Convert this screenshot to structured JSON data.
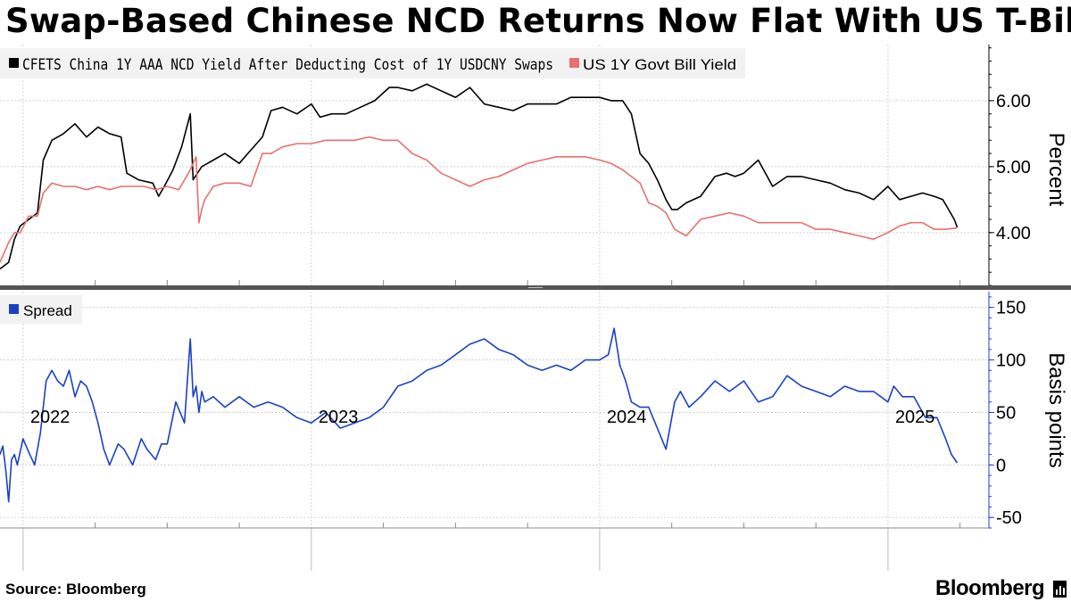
{
  "title": "Swap-Based Chinese NCD Returns Now Flat With US T-Bills",
  "source": "Source: Bloomberg",
  "brand": "Bloomberg",
  "brand_icon": "bar-chart-icon",
  "chart_data": [
    {
      "type": "line",
      "ylabel": "Percent",
      "ylim": [
        3.2,
        6.85
      ],
      "yticks": [
        4.0,
        5.0,
        6.0
      ],
      "ytick_labels": [
        "4.00",
        "5.00",
        "6.00"
      ],
      "x_tick_labels": [
        "2022",
        "2023",
        "2024",
        "2025"
      ],
      "x_ticks": [
        2022.0,
        2023.0,
        2024.0,
        2025.0
      ],
      "xlim": [
        2021.92,
        2025.35
      ],
      "grid": true,
      "legend_position": "top-left",
      "series": [
        {
          "name": "CFETS China 1Y AAA NCD Yield After Deducting Cost of 1Y USDCNY Swaps",
          "color": "#000000",
          "x": [
            2021.92,
            2021.95,
            2021.97,
            2021.99,
            2022.02,
            2022.05,
            2022.07,
            2022.1,
            2022.14,
            2022.18,
            2022.22,
            2022.26,
            2022.3,
            2022.34,
            2022.36,
            2022.4,
            2022.45,
            2022.47,
            2022.49,
            2022.52,
            2022.55,
            2022.58,
            2022.59,
            2022.62,
            2022.66,
            2022.7,
            2022.75,
            2022.79,
            2022.83,
            2022.86,
            2022.9,
            2022.95,
            2023.0,
            2023.03,
            2023.07,
            2023.12,
            2023.17,
            2023.22,
            2023.27,
            2023.3,
            2023.35,
            2023.4,
            2023.45,
            2023.5,
            2023.55,
            2023.6,
            2023.65,
            2023.7,
            2023.75,
            2023.8,
            2023.85,
            2023.9,
            2023.95,
            2024.0,
            2024.04,
            2024.08,
            2024.11,
            2024.14,
            2024.17,
            2024.2,
            2024.23,
            2024.25,
            2024.27,
            2024.3,
            2024.35,
            2024.4,
            2024.44,
            2024.47,
            2024.5,
            2024.55,
            2024.6,
            2024.65,
            2024.7,
            2024.75,
            2024.8,
            2024.85,
            2024.9,
            2024.95,
            2025.0,
            2025.04,
            2025.08,
            2025.12,
            2025.16,
            2025.19,
            2025.21,
            2025.23,
            2025.24
          ],
          "y": [
            3.45,
            3.55,
            3.9,
            4.1,
            4.2,
            4.3,
            5.1,
            5.4,
            5.5,
            5.65,
            5.45,
            5.6,
            5.5,
            5.45,
            4.9,
            4.8,
            4.75,
            4.55,
            4.7,
            4.95,
            5.3,
            5.8,
            4.8,
            5.0,
            5.1,
            5.2,
            5.05,
            5.25,
            5.45,
            5.85,
            5.9,
            5.8,
            5.95,
            5.75,
            5.8,
            5.8,
            5.9,
            6.0,
            6.2,
            6.2,
            6.15,
            6.25,
            6.15,
            6.05,
            6.2,
            5.95,
            5.9,
            5.85,
            5.95,
            5.95,
            5.95,
            6.05,
            6.05,
            6.05,
            6.0,
            6.0,
            5.8,
            5.2,
            5.05,
            4.8,
            4.5,
            4.35,
            4.35,
            4.45,
            4.55,
            4.85,
            4.9,
            4.85,
            4.9,
            5.1,
            4.7,
            4.85,
            4.85,
            4.8,
            4.75,
            4.65,
            4.6,
            4.5,
            4.7,
            4.5,
            4.55,
            4.6,
            4.55,
            4.5,
            4.35,
            4.2,
            4.08
          ]
        },
        {
          "name": "US 1Y Govt Bill Yield",
          "color": "#e8706d",
          "x": [
            2021.92,
            2021.95,
            2021.97,
            2021.99,
            2022.02,
            2022.05,
            2022.07,
            2022.1,
            2022.14,
            2022.18,
            2022.22,
            2022.26,
            2022.3,
            2022.34,
            2022.38,
            2022.42,
            2022.46,
            2022.5,
            2022.54,
            2022.58,
            2022.6,
            2022.61,
            2022.62,
            2022.63,
            2022.66,
            2022.7,
            2022.75,
            2022.79,
            2022.83,
            2022.86,
            2022.9,
            2022.95,
            2023.0,
            2023.05,
            2023.1,
            2023.15,
            2023.2,
            2023.25,
            2023.3,
            2023.35,
            2023.4,
            2023.45,
            2023.5,
            2023.55,
            2023.6,
            2023.65,
            2023.7,
            2023.75,
            2023.8,
            2023.85,
            2023.9,
            2023.95,
            2024.0,
            2024.04,
            2024.08,
            2024.11,
            2024.14,
            2024.17,
            2024.2,
            2024.23,
            2024.26,
            2024.3,
            2024.35,
            2024.4,
            2024.45,
            2024.5,
            2024.55,
            2024.6,
            2024.65,
            2024.7,
            2024.75,
            2024.8,
            2024.85,
            2024.9,
            2024.95,
            2025.0,
            2025.04,
            2025.08,
            2025.12,
            2025.16,
            2025.2,
            2025.24
          ],
          "y": [
            3.55,
            3.85,
            4.0,
            4.0,
            4.25,
            4.25,
            4.6,
            4.75,
            4.7,
            4.7,
            4.65,
            4.7,
            4.65,
            4.7,
            4.7,
            4.7,
            4.65,
            4.7,
            4.65,
            4.95,
            5.15,
            4.15,
            4.35,
            4.5,
            4.7,
            4.75,
            4.75,
            4.7,
            5.2,
            5.2,
            5.3,
            5.35,
            5.35,
            5.4,
            5.4,
            5.4,
            5.45,
            5.4,
            5.4,
            5.2,
            5.1,
            4.9,
            4.8,
            4.7,
            4.8,
            4.85,
            4.95,
            5.05,
            5.1,
            5.15,
            5.15,
            5.15,
            5.1,
            5.05,
            4.95,
            4.85,
            4.75,
            4.45,
            4.4,
            4.3,
            4.05,
            3.95,
            4.2,
            4.25,
            4.3,
            4.25,
            4.15,
            4.15,
            4.15,
            4.15,
            4.05,
            4.05,
            4.0,
            3.95,
            3.9,
            4.0,
            4.1,
            4.15,
            4.15,
            4.05,
            4.05,
            4.07
          ]
        }
      ]
    },
    {
      "type": "line",
      "ylabel": "Basis points",
      "ylim": [
        -60,
        165
      ],
      "yticks": [
        -50,
        0,
        50,
        100,
        150
      ],
      "ytick_labels": [
        "-50",
        "0",
        "50",
        "100",
        "150"
      ],
      "x_tick_labels": [
        "2022",
        "2023",
        "2024",
        "2025"
      ],
      "x_ticks": [
        2022.0,
        2023.0,
        2024.0,
        2025.0
      ],
      "xlim": [
        2021.92,
        2025.35
      ],
      "grid": true,
      "legend_position": "top-left",
      "series": [
        {
          "name": "Spread",
          "color": "#1b42c2",
          "x": [
            2021.92,
            2021.93,
            2021.94,
            2021.95,
            2021.96,
            2021.97,
            2021.98,
            2022.0,
            2022.02,
            2022.04,
            2022.06,
            2022.08,
            2022.1,
            2022.12,
            2022.14,
            2022.16,
            2022.18,
            2022.2,
            2022.22,
            2022.24,
            2022.26,
            2022.28,
            2022.3,
            2022.33,
            2022.35,
            2022.38,
            2022.41,
            2022.43,
            2022.46,
            2022.48,
            2022.5,
            2022.53,
            2022.56,
            2022.58,
            2022.59,
            2022.6,
            2022.61,
            2022.62,
            2022.63,
            2022.66,
            2022.7,
            2022.75,
            2022.8,
            2022.85,
            2022.9,
            2022.95,
            2023.0,
            2023.05,
            2023.1,
            2023.15,
            2023.2,
            2023.25,
            2023.3,
            2023.35,
            2023.4,
            2023.45,
            2023.5,
            2023.55,
            2023.6,
            2023.65,
            2023.7,
            2023.75,
            2023.8,
            2023.85,
            2023.9,
            2023.95,
            2024.0,
            2024.03,
            2024.05,
            2024.07,
            2024.09,
            2024.11,
            2024.14,
            2024.17,
            2024.2,
            2024.23,
            2024.26,
            2024.28,
            2024.31,
            2024.35,
            2024.4,
            2024.45,
            2024.5,
            2024.55,
            2024.6,
            2024.65,
            2024.7,
            2024.75,
            2024.8,
            2024.85,
            2024.9,
            2024.95,
            2025.0,
            2025.02,
            2025.05,
            2025.09,
            2025.13,
            2025.17,
            2025.2,
            2025.22,
            2025.24
          ],
          "y": [
            10,
            18,
            -5,
            -35,
            5,
            10,
            0,
            25,
            12,
            0,
            30,
            80,
            90,
            80,
            75,
            90,
            65,
            80,
            75,
            60,
            40,
            15,
            0,
            20,
            15,
            0,
            25,
            15,
            5,
            20,
            20,
            60,
            40,
            120,
            65,
            75,
            50,
            70,
            60,
            65,
            55,
            65,
            55,
            60,
            55,
            45,
            40,
            50,
            35,
            40,
            45,
            55,
            75,
            80,
            90,
            95,
            105,
            115,
            120,
            110,
            105,
            95,
            90,
            95,
            90,
            100,
            100,
            105,
            130,
            95,
            80,
            60,
            55,
            55,
            35,
            15,
            60,
            70,
            55,
            65,
            80,
            70,
            80,
            60,
            65,
            85,
            75,
            70,
            65,
            75,
            70,
            70,
            60,
            75,
            65,
            65,
            45,
            45,
            25,
            10,
            2
          ]
        }
      ]
    }
  ]
}
